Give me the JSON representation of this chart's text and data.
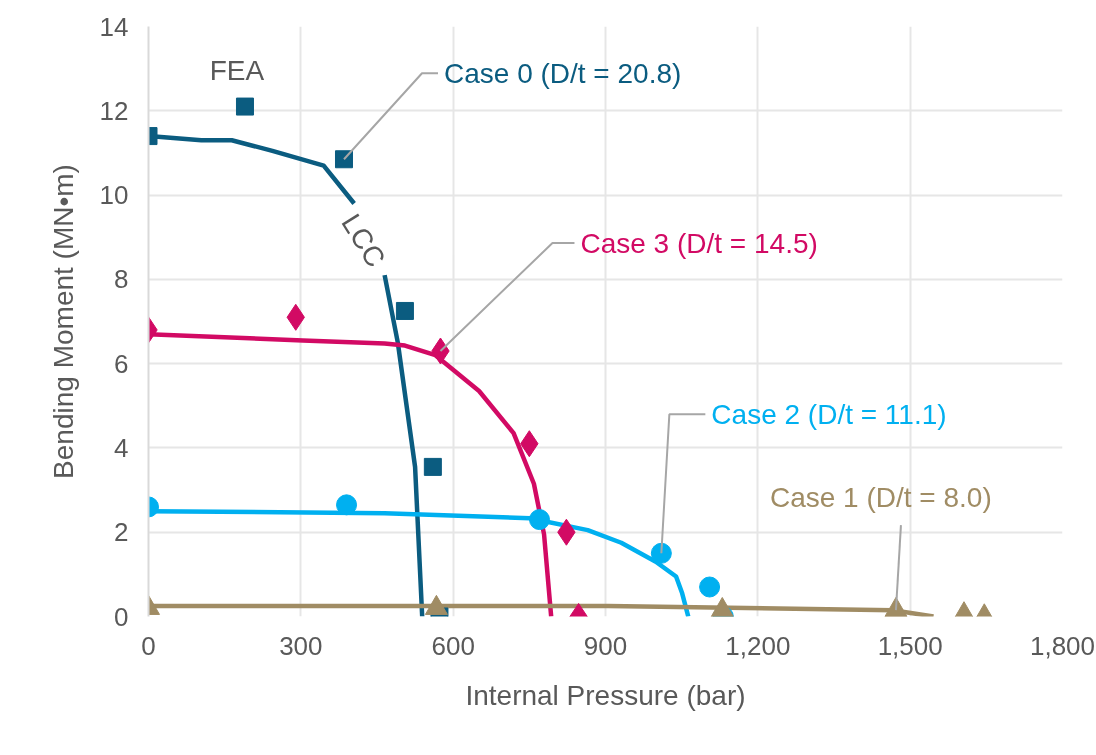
{
  "chart_data": {
    "type": "scatter",
    "xlabel": "Internal Pressure (bar)",
    "ylabel": "Bending Moment (MN•m)",
    "xlim": [
      0,
      1800
    ],
    "ylim": [
      0,
      14
    ],
    "xticks": [
      0,
      300,
      600,
      900,
      {
        "value": 1200,
        "label": "1,200"
      },
      {
        "value": 1500,
        "label": "1,500"
      },
      {
        "value": 1800,
        "label": "1,800"
      }
    ],
    "yticks": [
      0,
      2,
      4,
      6,
      8,
      10,
      12,
      14
    ],
    "grid": true,
    "series": [
      {
        "type": "line",
        "color": "#0b5c80",
        "x": [
          0,
          104,
          164,
          244,
          345,
          405,
          435,
          465,
          491,
          525,
          539
        ],
        "values": [
          11.4,
          11.3,
          11.3,
          11.05,
          10.7,
          9.8,
          null,
          8.1,
          6.5,
          3.55,
          0
        ]
      },
      {
        "type": "line",
        "color": "#d20a64",
        "x": [
          0,
          304,
          465,
          505,
          565,
          651,
          719,
          759,
          779,
          793
        ],
        "values": [
          6.7,
          6.55,
          6.48,
          6.43,
          6.2,
          5.35,
          4.35,
          3.15,
          1.95,
          0
        ]
      },
      {
        "type": "line",
        "color": "#00b0f0",
        "x": [
          0,
          465,
          751,
          865,
          931,
          999,
          1039,
          1051,
          1063
        ],
        "values": [
          2.5,
          2.45,
          2.33,
          2.05,
          1.75,
          1.3,
          0.95,
          0.55,
          0
        ]
      },
      {
        "type": "line",
        "color": "#a08c64",
        "x": [
          0,
          600,
          905,
          1466,
          1546
        ],
        "values": [
          0.25,
          0.25,
          0.25,
          0.15,
          0
        ]
      },
      {
        "marker": "square",
        "color": "#0b5c80",
        "x": [
          0,
          190,
          385,
          505,
          560,
          573
        ],
        "values": [
          11.4,
          12.1,
          10.85,
          7.25,
          3.55,
          0
        ]
      },
      {
        "marker": "diamond",
        "color": "#d20a64",
        "x": [
          0,
          290,
          575,
          750,
          823,
          847
        ],
        "values": [
          6.8,
          7.1,
          6.3,
          4.1,
          2.0,
          0
        ]
      },
      {
        "marker": "circle",
        "color": "#00b0f0",
        "x": [
          0,
          390,
          770,
          1010,
          1105,
          1132
        ],
        "values": [
          2.6,
          2.65,
          2.3,
          1.5,
          0.7,
          0
        ]
      },
      {
        "marker": "triangle",
        "color": "#a08c64",
        "x": [
          0,
          567,
          1130,
          1472,
          1606,
          1646
        ],
        "values": [
          0.2,
          0.2,
          0.15,
          0.15,
          0.05,
          0
        ]
      }
    ],
    "annotations": [
      {
        "text": "FEA",
        "x": 190,
        "y": 12.1
      },
      "LCC",
      {
        "text": "Case 0 (D/t = 20.8)",
        "x": 385,
        "y": 10.85
      },
      {
        "text": "Case 3 (D/t = 14.5)",
        "x": 575,
        "y": 6.3
      },
      {
        "text": "Case 2 (D/t = 11.1)",
        "x": 1010,
        "y": 1.5
      },
      {
        "text": "Case 1 (D/t = 8.0)",
        "x": 1472,
        "y": 0.15
      }
    ]
  }
}
